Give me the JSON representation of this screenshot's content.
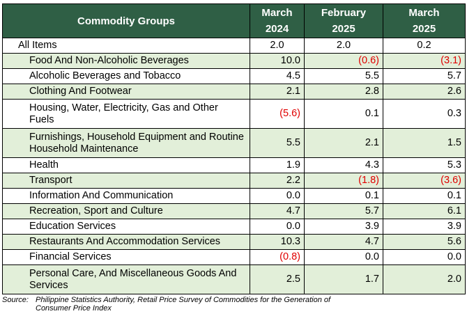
{
  "header": {
    "col1": "Commodity Groups",
    "col2": [
      "March",
      "2024"
    ],
    "col3": [
      "February",
      "2025"
    ],
    "col4": [
      "March",
      "2025"
    ]
  },
  "rows": [
    {
      "name": "All Items",
      "v": [
        "2.0",
        "2.0",
        "0.2"
      ],
      "neg": [
        false,
        false,
        false
      ]
    },
    {
      "name": "Food And Non-Alcoholic Beverages",
      "v": [
        "10.0",
        "(0.6)",
        "(3.1)"
      ],
      "neg": [
        false,
        true,
        true
      ]
    },
    {
      "name": "Alcoholic Beverages and Tobacco",
      "v": [
        "4.5",
        "5.5",
        "5.7"
      ],
      "neg": [
        false,
        false,
        false
      ]
    },
    {
      "name": "Clothing And Footwear",
      "v": [
        "2.1",
        "2.8",
        "2.6"
      ],
      "neg": [
        false,
        false,
        false
      ]
    },
    {
      "name": "Housing, Water, Electricity, Gas and Other Fuels",
      "v": [
        "(5.6)",
        "0.1",
        "0.3"
      ],
      "neg": [
        true,
        false,
        false
      ]
    },
    {
      "name": "Furnishings, Household Equipment and Routine Household Maintenance",
      "v": [
        "5.5",
        "2.1",
        "1.5"
      ],
      "neg": [
        false,
        false,
        false
      ]
    },
    {
      "name": "Health",
      "v": [
        "1.9",
        "4.3",
        "5.3"
      ],
      "neg": [
        false,
        false,
        false
      ]
    },
    {
      "name": "Transport",
      "v": [
        "2.2",
        "(1.8)",
        "(3.6)"
      ],
      "neg": [
        false,
        true,
        true
      ]
    },
    {
      "name": "Information And Communication",
      "v": [
        "0.0",
        "0.1",
        "0.1"
      ],
      "neg": [
        false,
        false,
        false
      ]
    },
    {
      "name": "Recreation, Sport and Culture",
      "v": [
        "4.7",
        "5.7",
        "6.1"
      ],
      "neg": [
        false,
        false,
        false
      ]
    },
    {
      "name": "Education Services",
      "v": [
        "0.0",
        "3.9",
        "3.9"
      ],
      "neg": [
        false,
        false,
        false
      ]
    },
    {
      "name": "Restaurants And Accommodation Services",
      "v": [
        "10.3",
        "4.7",
        "5.6"
      ],
      "neg": [
        false,
        false,
        false
      ]
    },
    {
      "name": "Financial Services",
      "v": [
        "(0.8)",
        "0.0",
        "0.0"
      ],
      "neg": [
        true,
        false,
        false
      ]
    },
    {
      "name": "Personal Care, And Miscellaneous Goods And Services",
      "v": [
        "2.5",
        "1.7",
        "2.0"
      ],
      "neg": [
        false,
        false,
        false
      ]
    }
  ],
  "source": {
    "label": "Source:",
    "line1": "Philippine Statistics Authority, Retail Price Survey of Commodities for the Generation of",
    "line2": "Consumer Price Index"
  },
  "colors": {
    "header_bg": "#2f5f45",
    "band_bg": "#e2efd9",
    "negative": "#e00000"
  }
}
